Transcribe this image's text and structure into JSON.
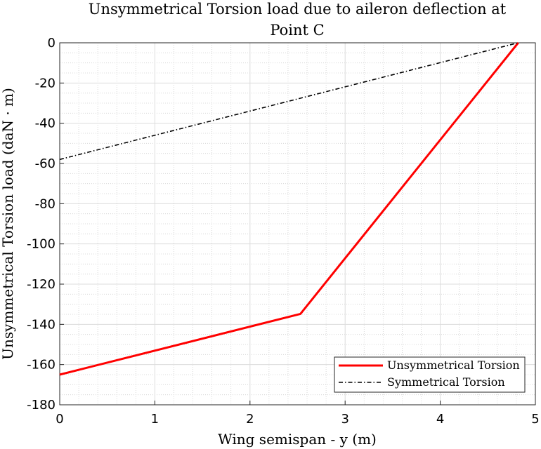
{
  "chart_data": {
    "type": "line",
    "title_line1": "Unsymmetrical Torsion load due to aileron deflection at",
    "title_line2": "Point C",
    "xlabel": "Wing semispan - y (m)",
    "ylabel": "Unsymmetrical Torsion load (daN · m)",
    "xlim": [
      0,
      5
    ],
    "ylim": [
      -180,
      0
    ],
    "xticks": [
      0,
      1,
      2,
      3,
      4,
      5
    ],
    "yticks": [
      0,
      -20,
      -40,
      -60,
      -80,
      -100,
      -120,
      -140,
      -160,
      -180
    ],
    "grid": "on (major and minor)",
    "legend_position": "bottom-right",
    "series": [
      {
        "name": "Unsymmetrical Torsion",
        "color": "#ff0000",
        "style": "solid",
        "x": [
          0,
          2.53,
          4.82
        ],
        "y": [
          -165,
          -134.8,
          0
        ]
      },
      {
        "name": "Symmetrical Torsion",
        "color": "#000000",
        "style": "dash-dot",
        "x": [
          0,
          4.82
        ],
        "y": [
          -58,
          0
        ]
      }
    ]
  }
}
